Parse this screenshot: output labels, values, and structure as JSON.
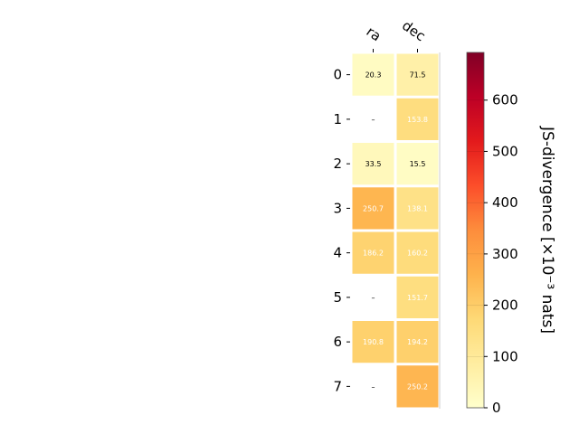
{
  "chart_data": {
    "type": "heatmap",
    "title": "",
    "columns": [
      "ra",
      "dec"
    ],
    "rows": [
      "0",
      "1",
      "2",
      "3",
      "4",
      "5",
      "6",
      "7"
    ],
    "values": [
      [
        20.3,
        71.5
      ],
      [
        null,
        153.8
      ],
      [
        33.5,
        15.5
      ],
      [
        250.7,
        138.1
      ],
      [
        186.2,
        160.2
      ],
      [
        null,
        151.7
      ],
      [
        190.8,
        194.2
      ],
      [
        null,
        250.2
      ]
    ],
    "missing_label": "–",
    "colorbar": {
      "label": "JS-divergence [×10⁻³ nats]",
      "vmin": 0,
      "vmax": 693,
      "ticks": [
        0,
        100,
        200,
        300,
        400,
        500,
        600
      ],
      "tick_labels": [
        "0",
        "100",
        "200",
        "300",
        "400",
        "500",
        "600"
      ],
      "colormap": "YlOrRd"
    }
  }
}
